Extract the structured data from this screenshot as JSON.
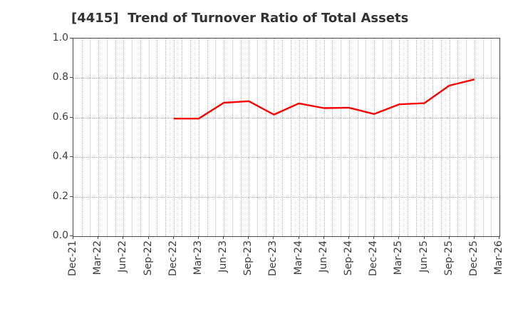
{
  "page": {
    "background": "#ffffff"
  },
  "chart_data": {
    "type": "line",
    "title": "[4415]  Trend of Turnover Ratio of Total Assets",
    "title_color": "#333333",
    "categories": [
      "Dec-21",
      "Mar-22",
      "Jun-22",
      "Sep-22",
      "Dec-22",
      "Mar-23",
      "Jun-23",
      "Sep-23",
      "Dec-23",
      "Mar-24",
      "Jun-24",
      "Sep-24",
      "Dec-24",
      "Mar-25",
      "Jun-25",
      "Sep-25",
      "Dec-25",
      "Mar-26"
    ],
    "series": [
      {
        "color": "#ff0000",
        "values": [
          null,
          null,
          null,
          null,
          0.595,
          0.595,
          0.675,
          0.683,
          0.615,
          0.672,
          0.648,
          0.65,
          0.618,
          0.667,
          0.673,
          0.762,
          0.793,
          null
        ]
      }
    ],
    "ylim": [
      0.0,
      1.0
    ],
    "y_ticks": [
      "0.0",
      "0.2",
      "0.4",
      "0.6",
      "0.8",
      "1.0"
    ],
    "x_tick_rotation": 90,
    "grid": "dotted",
    "minor_x_gridlines_per_interval": 3,
    "legend": false
  }
}
